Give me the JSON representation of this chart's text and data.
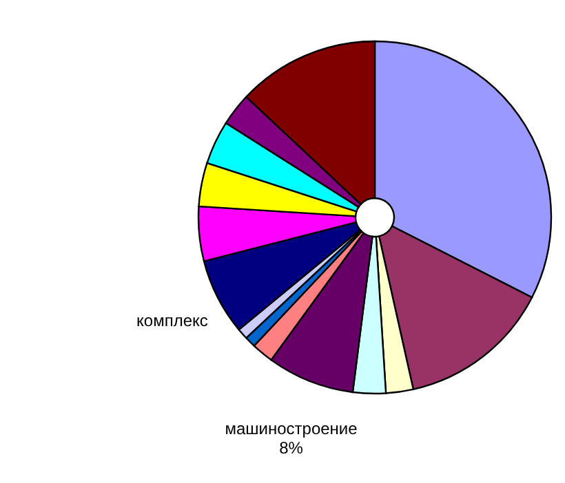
{
  "chart_data": {
    "type": "pie",
    "categories": [
      null,
      null,
      null,
      null,
      "машиностроение",
      null,
      null,
      null,
      "комплекс",
      null,
      null,
      null,
      null,
      null
    ],
    "values": [
      32.5,
      14,
      2.5,
      3,
      8,
      2,
      1,
      1,
      7,
      5,
      4,
      4,
      3,
      13
    ],
    "value_labels": [
      null,
      null,
      null,
      null,
      "8%",
      null,
      null,
      null,
      null,
      null,
      null,
      null,
      null,
      null
    ],
    "colors": [
      "#9999ff",
      "#993366",
      "#ffffcc",
      "#ccffff",
      "#660066",
      "#ff8080",
      "#0066cc",
      "#ccccff",
      "#000080",
      "#ff00ff",
      "#ffff00",
      "#00ffff",
      "#800080",
      "#800000"
    ]
  }
}
